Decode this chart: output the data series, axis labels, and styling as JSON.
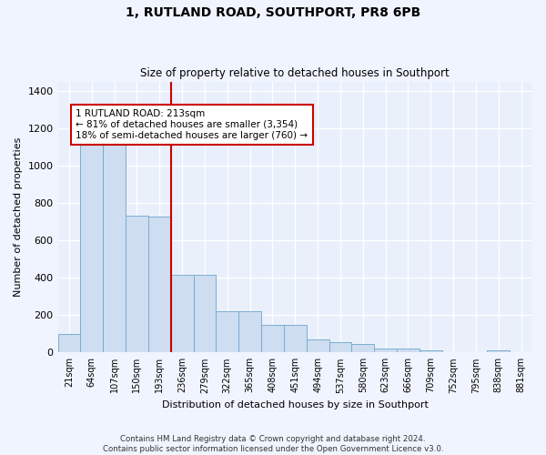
{
  "title": "1, RUTLAND ROAD, SOUTHPORT, PR8 6PB",
  "subtitle": "Size of property relative to detached houses in Southport",
  "xlabel": "Distribution of detached houses by size in Southport",
  "ylabel": "Number of detached properties",
  "bar_labels": [
    "21sqm",
    "64sqm",
    "107sqm",
    "150sqm",
    "193sqm",
    "236sqm",
    "279sqm",
    "322sqm",
    "365sqm",
    "408sqm",
    "451sqm",
    "494sqm",
    "537sqm",
    "580sqm",
    "623sqm",
    "666sqm",
    "709sqm",
    "752sqm",
    "795sqm",
    "838sqm",
    "881sqm"
  ],
  "bar_values": [
    100,
    1160,
    1155,
    730,
    725,
    415,
    415,
    220,
    220,
    150,
    150,
    70,
    55,
    45,
    20,
    20,
    12,
    0,
    0,
    12,
    0
  ],
  "bar_color": "#cfddf0",
  "bar_edgecolor": "#7aadcf",
  "vline_x": 4.5,
  "vline_color": "#cc0000",
  "annotation_text": "1 RUTLAND ROAD: 213sqm\n← 81% of detached houses are smaller (3,354)\n18% of semi-detached houses are larger (760) →",
  "annotation_box_color": "white",
  "annotation_box_edgecolor": "#cc0000",
  "ylim": [
    0,
    1450
  ],
  "yticks": [
    0,
    200,
    400,
    600,
    800,
    1000,
    1200,
    1400
  ],
  "footer": "Contains HM Land Registry data © Crown copyright and database right 2024.\nContains public sector information licensed under the Open Government Licence v3.0.",
  "bg_color": "#f0f4ff",
  "plot_bg_color": "#eaf0fb"
}
